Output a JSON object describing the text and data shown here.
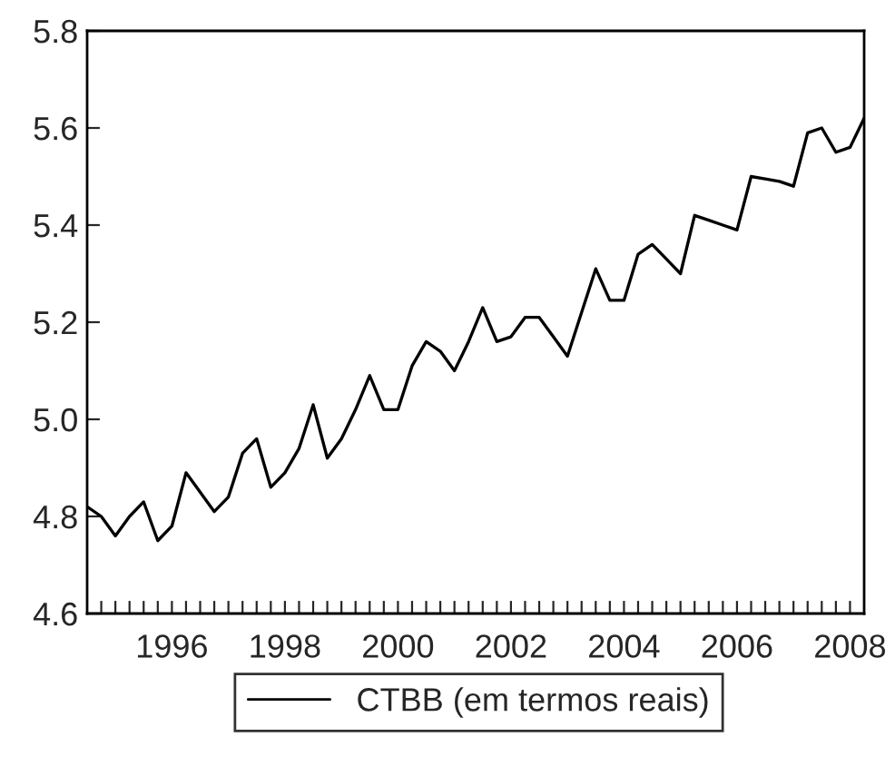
{
  "chart_data": {
    "type": "line",
    "x": [
      1995.0,
      1995.25,
      1995.5,
      1995.75,
      1996.0,
      1996.25,
      1996.5,
      1996.75,
      1997.0,
      1997.25,
      1997.5,
      1997.75,
      1998.0,
      1998.25,
      1998.5,
      1998.75,
      1999.0,
      1999.25,
      1999.5,
      1999.75,
      2000.0,
      2000.25,
      2000.5,
      2000.75,
      2001.0,
      2001.25,
      2001.5,
      2001.75,
      2002.0,
      2002.25,
      2002.5,
      2002.75,
      2003.0,
      2003.25,
      2003.5,
      2003.75,
      2004.0,
      2004.25,
      2004.5,
      2004.75,
      2005.0,
      2005.25,
      2005.5,
      2005.75,
      2006.0,
      2006.25,
      2006.5,
      2006.75,
      2007.0,
      2007.25,
      2007.5,
      2007.75,
      2008.0,
      2008.25,
      2008.5,
      2008.75
    ],
    "series": [
      {
        "name": "CTBB (em termos reais)",
        "color": "#000000",
        "values": [
          4.82,
          4.8,
          4.76,
          4.8,
          4.83,
          4.75,
          4.78,
          4.89,
          4.85,
          4.81,
          4.84,
          4.93,
          4.96,
          4.86,
          4.89,
          4.94,
          5.03,
          4.92,
          4.96,
          5.02,
          5.09,
          5.02,
          5.02,
          5.11,
          5.16,
          5.14,
          5.1,
          5.16,
          5.23,
          5.16,
          5.17,
          5.21,
          5.21,
          5.17,
          5.13,
          5.22,
          5.31,
          5.245,
          5.245,
          5.34,
          5.36,
          5.33,
          5.3,
          5.42,
          5.41,
          5.4,
          5.39,
          5.5,
          5.495,
          5.49,
          5.48,
          5.59,
          5.6,
          5.55,
          5.56,
          5.62
        ]
      }
    ],
    "xlim": [
      1995.0,
      2008.75
    ],
    "xticks": [
      {
        "value": 1995.25,
        "label": null
      },
      {
        "value": 1995.5,
        "label": null
      },
      {
        "value": 1995.75,
        "label": null
      },
      {
        "value": 1996.0,
        "label": null
      },
      {
        "value": 1996.25,
        "label": null
      },
      {
        "value": 1996.5,
        "label": "1996"
      },
      {
        "value": 1996.75,
        "label": null
      },
      {
        "value": 1997.0,
        "label": null
      },
      {
        "value": 1997.25,
        "label": null
      },
      {
        "value": 1997.5,
        "label": null
      },
      {
        "value": 1997.75,
        "label": null
      },
      {
        "value": 1998.0,
        "label": null
      },
      {
        "value": 1998.25,
        "label": null
      },
      {
        "value": 1998.5,
        "label": "1998"
      },
      {
        "value": 1998.75,
        "label": null
      },
      {
        "value": 1999.0,
        "label": null
      },
      {
        "value": 1999.25,
        "label": null
      },
      {
        "value": 1999.5,
        "label": null
      },
      {
        "value": 1999.75,
        "label": null
      },
      {
        "value": 2000.0,
        "label": null
      },
      {
        "value": 2000.25,
        "label": null
      },
      {
        "value": 2000.5,
        "label": "2000"
      },
      {
        "value": 2000.75,
        "label": null
      },
      {
        "value": 2001.0,
        "label": null
      },
      {
        "value": 2001.25,
        "label": null
      },
      {
        "value": 2001.5,
        "label": null
      },
      {
        "value": 2001.75,
        "label": null
      },
      {
        "value": 2002.0,
        "label": null
      },
      {
        "value": 2002.25,
        "label": null
      },
      {
        "value": 2002.5,
        "label": "2002"
      },
      {
        "value": 2002.75,
        "label": null
      },
      {
        "value": 2003.0,
        "label": null
      },
      {
        "value": 2003.25,
        "label": null
      },
      {
        "value": 2003.5,
        "label": null
      },
      {
        "value": 2003.75,
        "label": null
      },
      {
        "value": 2004.0,
        "label": null
      },
      {
        "value": 2004.25,
        "label": null
      },
      {
        "value": 2004.5,
        "label": "2004"
      },
      {
        "value": 2004.75,
        "label": null
      },
      {
        "value": 2005.0,
        "label": null
      },
      {
        "value": 2005.25,
        "label": null
      },
      {
        "value": 2005.5,
        "label": null
      },
      {
        "value": 2005.75,
        "label": null
      },
      {
        "value": 2006.0,
        "label": null
      },
      {
        "value": 2006.25,
        "label": null
      },
      {
        "value": 2006.5,
        "label": "2006"
      },
      {
        "value": 2006.75,
        "label": null
      },
      {
        "value": 2007.0,
        "label": null
      },
      {
        "value": 2007.25,
        "label": null
      },
      {
        "value": 2007.5,
        "label": null
      },
      {
        "value": 2007.75,
        "label": null
      },
      {
        "value": 2008.0,
        "label": null
      },
      {
        "value": 2008.25,
        "label": null
      },
      {
        "value": 2008.5,
        "label": "2008"
      }
    ],
    "ylim": [
      4.6,
      5.8
    ],
    "yticks": [
      4.6,
      4.8,
      {
        "value": 5.0,
        "label": "5.0"
      },
      5.2,
      5.4,
      5.6,
      5.8
    ],
    "legend": "bottom",
    "line_style": "solid"
  }
}
